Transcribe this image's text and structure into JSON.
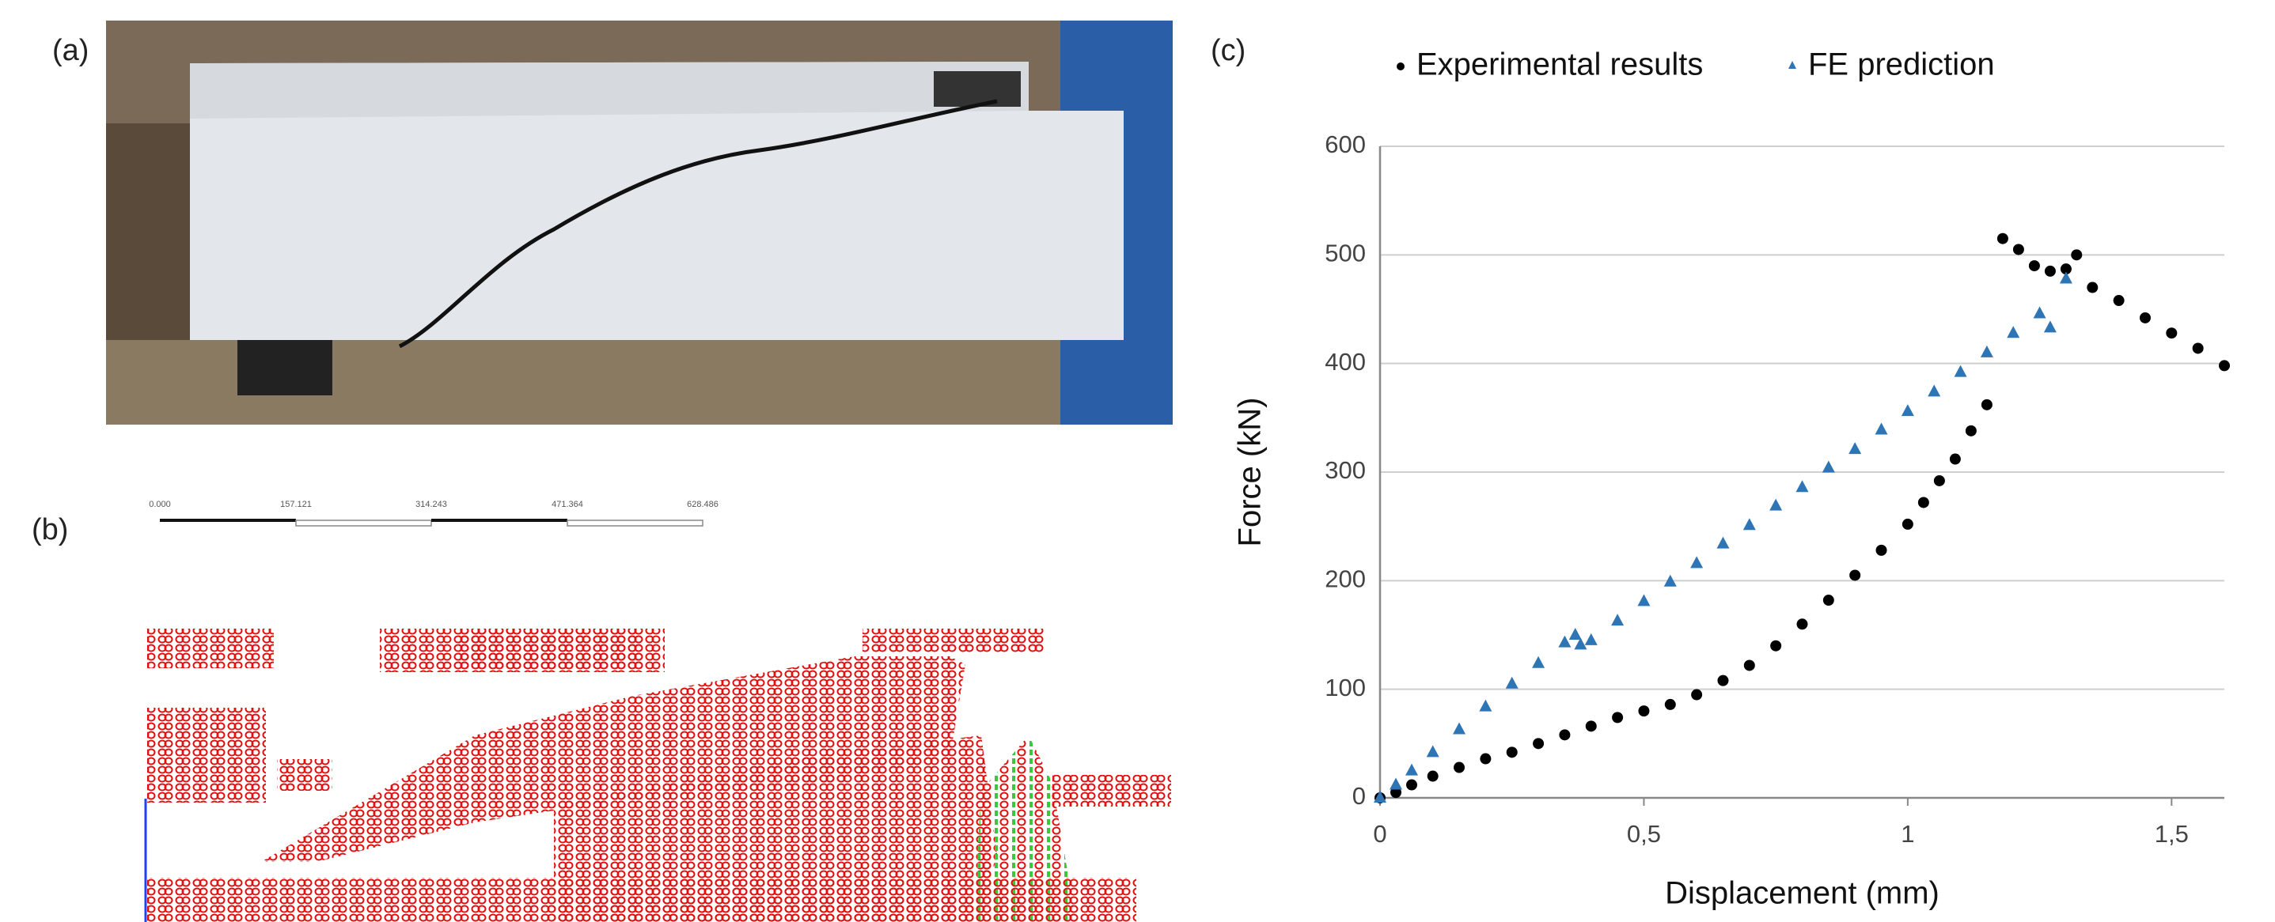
{
  "panels": {
    "a": "(a)",
    "b": "(b)",
    "c": "(c)"
  },
  "scale_bar": [
    "0.000",
    "157.121",
    "314.243",
    "471.364",
    "628.486"
  ],
  "chart_data": {
    "type": "scatter",
    "xlabel": "Displacement (mm)",
    "ylabel": "Force (kN)",
    "xlim": [
      0,
      1.6
    ],
    "ylim": [
      0,
      600
    ],
    "xticks": [
      0,
      {
        "value": 0.5,
        "label": "0,5"
      },
      1,
      {
        "value": 1.5,
        "label": "1,5"
      }
    ],
    "yticks": [
      0,
      100,
      200,
      300,
      400,
      500,
      600
    ],
    "grid": true,
    "legend": "top",
    "series": [
      {
        "name": "Experimental results",
        "color": "#000000",
        "marker": "circle",
        "x": [
          0,
          0.03,
          0.06,
          0.1,
          0.15,
          0.2,
          0.25,
          0.3,
          0.35,
          0.4,
          0.45,
          0.5,
          0.55,
          0.6,
          0.65,
          0.7,
          0.75,
          0.8,
          0.85,
          0.9,
          0.95,
          1.0,
          1.03,
          1.06,
          1.09,
          1.12,
          1.15,
          1.18,
          1.21,
          1.24,
          1.27,
          1.3,
          1.32,
          1.35,
          1.4,
          1.45,
          1.5,
          1.55,
          1.6
        ],
        "values": [
          0,
          5,
          12,
          20,
          28,
          36,
          42,
          50,
          58,
          66,
          74,
          80,
          86,
          95,
          108,
          122,
          140,
          160,
          182,
          205,
          228,
          252,
          272,
          292,
          312,
          338,
          362,
          515,
          505,
          490,
          485,
          487,
          500,
          470,
          458,
          442,
          428,
          414,
          398
        ]
      },
      {
        "name": "FE prediction",
        "color": "#2e75b6",
        "marker": "triangle",
        "x": [
          0,
          0.03,
          0.06,
          0.1,
          0.15,
          0.2,
          0.25,
          0.3,
          0.35,
          0.37,
          0.38,
          0.4,
          0.45,
          0.5,
          0.55,
          0.6,
          0.65,
          0.7,
          0.75,
          0.8,
          0.85,
          0.9,
          0.95,
          1.0,
          1.05,
          1.1,
          1.15,
          1.2,
          1.25,
          1.3,
          1.27
        ],
        "values": [
          0,
          12,
          25,
          42,
          63,
          84,
          105,
          124,
          143,
          150,
          141,
          145,
          163,
          181,
          199,
          216,
          234,
          251,
          269,
          286,
          304,
          321,
          339,
          356,
          374,
          392,
          410,
          428,
          446,
          478,
          433
        ]
      }
    ]
  }
}
